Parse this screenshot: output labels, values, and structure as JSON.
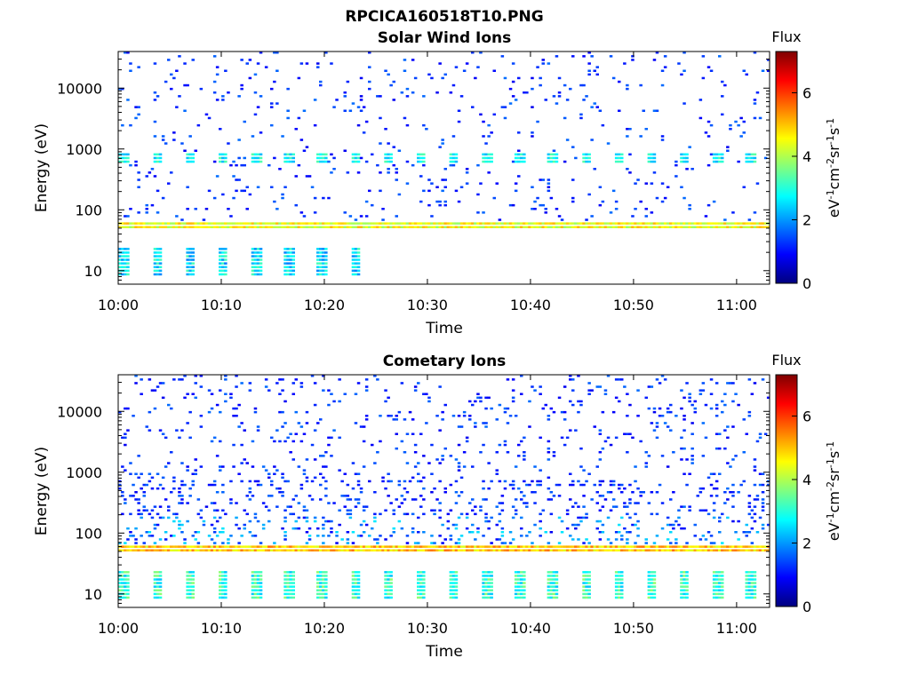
{
  "figure_title": "RPCICA160518T10.PNG",
  "colorbar": {
    "title": "Flux",
    "label": "eV-1cm-2sr-1s-1",
    "ticks": [
      "0",
      "2",
      "4",
      "6"
    ],
    "range": [
      0,
      7.3
    ],
    "colormap": "jet"
  },
  "chart_data": [
    {
      "type": "heatmap",
      "title": "Solar Wind Ions",
      "xlabel": "Time",
      "ylabel": "Energy (eV)",
      "x_ticks": [
        "10:00",
        "10:10",
        "10:20",
        "10:30",
        "10:40",
        "10:50",
        "11:00"
      ],
      "x_tick_minutes": [
        0,
        10,
        20,
        30,
        40,
        50,
        60
      ],
      "xlim_minutes": [
        0,
        63.2
      ],
      "y_ticks": [
        "10",
        "100",
        "1000",
        "10000"
      ],
      "y_tick_values": [
        10,
        100,
        1000,
        10000
      ],
      "yscale": "log",
      "ylim": [
        6,
        40000
      ],
      "z_units": "eV-1cm-2sr-1s-1",
      "bands": [
        {
          "energy": [
            45,
            62
          ],
          "flux": 4.2,
          "description": "strong continuous band"
        },
        {
          "energy": [
            550,
            800
          ],
          "flux": 2.8,
          "periodic_minutes": 3.2
        },
        {
          "energy": [
            8,
            25
          ],
          "flux": 2.3,
          "time_extent_minutes": [
            0,
            24
          ]
        }
      ]
    },
    {
      "type": "heatmap",
      "title": "Cometary Ions",
      "xlabel": "Time",
      "ylabel": "Energy (eV)",
      "x_ticks": [
        "10:00",
        "10:10",
        "10:20",
        "10:30",
        "10:40",
        "10:50",
        "11:00"
      ],
      "x_tick_minutes": [
        0,
        10,
        20,
        30,
        40,
        50,
        60
      ],
      "xlim_minutes": [
        0,
        63.2
      ],
      "y_ticks": [
        "10",
        "100",
        "1000",
        "10000"
      ],
      "y_tick_values": [
        10,
        100,
        1000,
        10000
      ],
      "yscale": "log",
      "ylim": [
        6,
        40000
      ],
      "z_units": "eV-1cm-2sr-1s-1",
      "bands": [
        {
          "energy": [
            45,
            62
          ],
          "flux": 4.6,
          "description": "strong continuous band"
        },
        {
          "energy": [
            80,
            700
          ],
          "flux": 1.6,
          "description": "broad low-flux population"
        },
        {
          "energy": [
            8,
            25
          ],
          "flux": 2.8,
          "time_extent_minutes": [
            0,
            63
          ]
        }
      ]
    }
  ]
}
